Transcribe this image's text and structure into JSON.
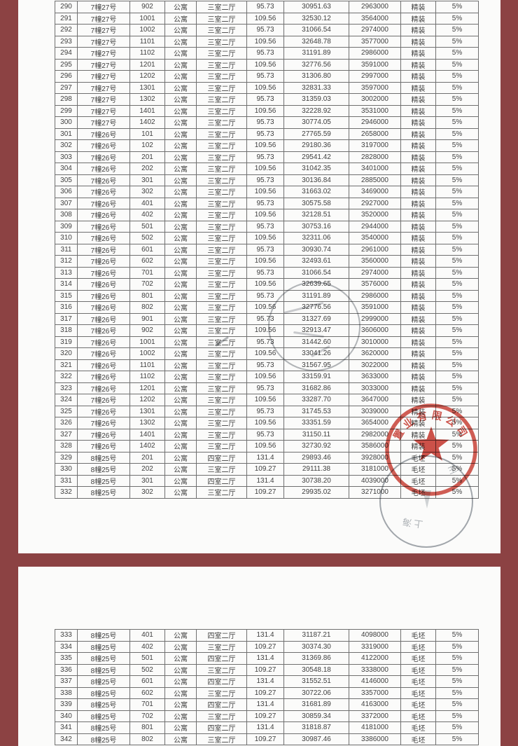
{
  "colors": {
    "frame_maroon": "#8C4243",
    "page_background": "#FBFBFA",
    "table_border_gray": "#6F6F6F",
    "text_gray": "#3F3F3F",
    "seal_red": "#C93A31",
    "stamp_gray": "#79818B"
  },
  "pages": [
    {
      "rows": [
        [
          "290",
          "7幢27号",
          "902",
          "公寓",
          "三室二厅",
          "95.73",
          "30951.63",
          "2963000",
          "精装",
          "5%"
        ],
        [
          "291",
          "7幢27号",
          "1001",
          "公寓",
          "三室二厅",
          "109.56",
          "32530.12",
          "3564000",
          "精装",
          "5%"
        ],
        [
          "292",
          "7幢27号",
          "1002",
          "公寓",
          "三室二厅",
          "95.73",
          "31066.54",
          "2974000",
          "精装",
          "5%"
        ],
        [
          "293",
          "7幢27号",
          "1101",
          "公寓",
          "三室二厅",
          "109.56",
          "32648.78",
          "3577000",
          "精装",
          "5%"
        ],
        [
          "294",
          "7幢27号",
          "1102",
          "公寓",
          "三室二厅",
          "95.73",
          "31191.89",
          "2986000",
          "精装",
          "5%"
        ],
        [
          "295",
          "7幢27号",
          "1201",
          "公寓",
          "三室二厅",
          "109.56",
          "32776.56",
          "3591000",
          "精装",
          "5%"
        ],
        [
          "296",
          "7幢27号",
          "1202",
          "公寓",
          "三室二厅",
          "95.73",
          "31306.80",
          "2997000",
          "精装",
          "5%"
        ],
        [
          "297",
          "7幢27号",
          "1301",
          "公寓",
          "三室二厅",
          "109.56",
          "32831.33",
          "3597000",
          "精装",
          "5%"
        ],
        [
          "298",
          "7幢27号",
          "1302",
          "公寓",
          "三室二厅",
          "95.73",
          "31359.03",
          "3002000",
          "精装",
          "5%"
        ],
        [
          "299",
          "7幢27号",
          "1401",
          "公寓",
          "三室二厅",
          "109.56",
          "32228.92",
          "3531000",
          "精装",
          "5%"
        ],
        [
          "300",
          "7幢27号",
          "1402",
          "公寓",
          "三室二厅",
          "95.73",
          "30774.05",
          "2946000",
          "精装",
          "5%"
        ],
        [
          "301",
          "7幢26号",
          "101",
          "公寓",
          "三室二厅",
          "95.73",
          "27765.59",
          "2658000",
          "精装",
          "5%"
        ],
        [
          "302",
          "7幢26号",
          "102",
          "公寓",
          "三室二厅",
          "109.56",
          "29180.36",
          "3197000",
          "精装",
          "5%"
        ],
        [
          "303",
          "7幢26号",
          "201",
          "公寓",
          "三室二厅",
          "95.73",
          "29541.42",
          "2828000",
          "精装",
          "5%"
        ],
        [
          "304",
          "7幢26号",
          "202",
          "公寓",
          "三室二厅",
          "109.56",
          "31042.35",
          "3401000",
          "精装",
          "5%"
        ],
        [
          "305",
          "7幢26号",
          "301",
          "公寓",
          "三室二厅",
          "95.73",
          "30136.84",
          "2885000",
          "精装",
          "5%"
        ],
        [
          "306",
          "7幢26号",
          "302",
          "公寓",
          "三室二厅",
          "109.56",
          "31663.02",
          "3469000",
          "精装",
          "5%"
        ],
        [
          "307",
          "7幢26号",
          "401",
          "公寓",
          "三室二厅",
          "95.73",
          "30575.58",
          "2927000",
          "精装",
          "5%"
        ],
        [
          "308",
          "7幢26号",
          "402",
          "公寓",
          "三室二厅",
          "109.56",
          "32128.51",
          "3520000",
          "精装",
          "5%"
        ],
        [
          "309",
          "7幢26号",
          "501",
          "公寓",
          "三室二厅",
          "95.73",
          "30753.16",
          "2944000",
          "精装",
          "5%"
        ],
        [
          "310",
          "7幢26号",
          "502",
          "公寓",
          "三室二厅",
          "109.56",
          "32311.06",
          "3540000",
          "精装",
          "5%"
        ],
        [
          "311",
          "7幢26号",
          "601",
          "公寓",
          "三室二厅",
          "95.73",
          "30930.74",
          "2961000",
          "精装",
          "5%"
        ],
        [
          "312",
          "7幢26号",
          "602",
          "公寓",
          "三室二厅",
          "109.56",
          "32493.61",
          "3560000",
          "精装",
          "5%"
        ],
        [
          "313",
          "7幢26号",
          "701",
          "公寓",
          "三室二厅",
          "95.73",
          "31066.54",
          "2974000",
          "精装",
          "5%"
        ],
        [
          "314",
          "7幢26号",
          "702",
          "公寓",
          "三室二厅",
          "109.56",
          "32639.65",
          "3576000",
          "精装",
          "5%"
        ],
        [
          "315",
          "7幢26号",
          "801",
          "公寓",
          "三室二厅",
          "95.73",
          "31191.89",
          "2986000",
          "精装",
          "5%"
        ],
        [
          "316",
          "7幢26号",
          "802",
          "公寓",
          "三室二厅",
          "109.56",
          "32776.56",
          "3591000",
          "精装",
          "5%"
        ],
        [
          "317",
          "7幢26号",
          "901",
          "公寓",
          "三室二厅",
          "95.73",
          "31327.69",
          "2999000",
          "精装",
          "5%"
        ],
        [
          "318",
          "7幢26号",
          "902",
          "公寓",
          "三室二厅",
          "109.56",
          "32913.47",
          "3606000",
          "精装",
          "5%"
        ],
        [
          "319",
          "7幢26号",
          "1001",
          "公寓",
          "三室二厅",
          "95.73",
          "31442.60",
          "3010000",
          "精装",
          "5%"
        ],
        [
          "320",
          "7幢26号",
          "1002",
          "公寓",
          "三室二厅",
          "109.56",
          "33041.26",
          "3620000",
          "精装",
          "5%"
        ],
        [
          "321",
          "7幢26号",
          "1101",
          "公寓",
          "三室二厅",
          "95.73",
          "31567.95",
          "3022000",
          "精装",
          "5%"
        ],
        [
          "322",
          "7幢26号",
          "1102",
          "公寓",
          "三室二厅",
          "109.56",
          "33159.91",
          "3633000",
          "精装",
          "5%"
        ],
        [
          "323",
          "7幢26号",
          "1201",
          "公寓",
          "三室二厅",
          "95.73",
          "31682.86",
          "3033000",
          "精装",
          "5%"
        ],
        [
          "324",
          "7幢26号",
          "1202",
          "公寓",
          "三室二厅",
          "109.56",
          "33287.70",
          "3647000",
          "精装",
          "5%"
        ],
        [
          "325",
          "7幢26号",
          "1301",
          "公寓",
          "三室二厅",
          "95.73",
          "31745.53",
          "3039000",
          "精装",
          "5%"
        ],
        [
          "326",
          "7幢26号",
          "1302",
          "公寓",
          "三室二厅",
          "109.56",
          "33351.59",
          "3654000",
          "精装",
          "5%"
        ],
        [
          "327",
          "7幢26号",
          "1401",
          "公寓",
          "三室二厅",
          "95.73",
          "31150.11",
          "2982000",
          "精装",
          "5%"
        ],
        [
          "328",
          "7幢26号",
          "1402",
          "公寓",
          "三室二厅",
          "109.56",
          "32730.92",
          "3586000",
          "精装",
          "5%"
        ],
        [
          "329",
          "8幢25号",
          "201",
          "公寓",
          "四室二厅",
          "131.4",
          "29893.46",
          "3928000",
          "毛坯",
          "5%"
        ],
        [
          "330",
          "8幢25号",
          "202",
          "公寓",
          "三室二厅",
          "109.27",
          "29111.38",
          "3181000",
          "毛坯",
          "5%"
        ],
        [
          "331",
          "8幢25号",
          "301",
          "公寓",
          "四室二厅",
          "131.4",
          "30738.20",
          "4039000",
          "毛坯",
          "5%"
        ],
        [
          "332",
          "8幢25号",
          "302",
          "公寓",
          "三室二厅",
          "109.27",
          "29935.02",
          "3271000",
          "毛坯",
          "5%"
        ]
      ]
    },
    {
      "rows": [
        [
          "333",
          "8幢25号",
          "401",
          "公寓",
          "四室二厅",
          "131.4",
          "31187.21",
          "4098000",
          "毛坯",
          "5%"
        ],
        [
          "334",
          "8幢25号",
          "402",
          "公寓",
          "三室二厅",
          "109.27",
          "30374.30",
          "3319000",
          "毛坯",
          "5%"
        ],
        [
          "335",
          "8幢25号",
          "501",
          "公寓",
          "四室二厅",
          "131.4",
          "31369.86",
          "4122000",
          "毛坯",
          "5%"
        ],
        [
          "336",
          "8幢25号",
          "502",
          "公寓",
          "三室二厅",
          "109.27",
          "30548.18",
          "3338000",
          "毛坯",
          "5%"
        ],
        [
          "337",
          "8幢25号",
          "601",
          "公寓",
          "四室二厅",
          "131.4",
          "31552.51",
          "4146000",
          "毛坯",
          "5%"
        ],
        [
          "338",
          "8幢25号",
          "602",
          "公寓",
          "三室二厅",
          "109.27",
          "30722.06",
          "3357000",
          "毛坯",
          "5%"
        ],
        [
          "339",
          "8幢25号",
          "701",
          "公寓",
          "四室二厅",
          "131.4",
          "31681.89",
          "4163000",
          "毛坯",
          "5%"
        ],
        [
          "340",
          "8幢25号",
          "702",
          "公寓",
          "三室二厅",
          "109.27",
          "30859.34",
          "3372000",
          "毛坯",
          "5%"
        ],
        [
          "341",
          "8幢25号",
          "801",
          "公寓",
          "四室二厅",
          "131.4",
          "31818.87",
          "4181000",
          "毛坯",
          "5%"
        ],
        [
          "342",
          "8幢25号",
          "802",
          "公寓",
          "三室二厅",
          "109.27",
          "30987.46",
          "3386000",
          "毛坯",
          "5%"
        ]
      ]
    }
  ],
  "stamps": {
    "red_seal": {
      "arc_text": "置业有限公司"
    },
    "gray_seal": {
      "fragment_shanghai": "上海",
      "fragment_wang": "王"
    }
  }
}
